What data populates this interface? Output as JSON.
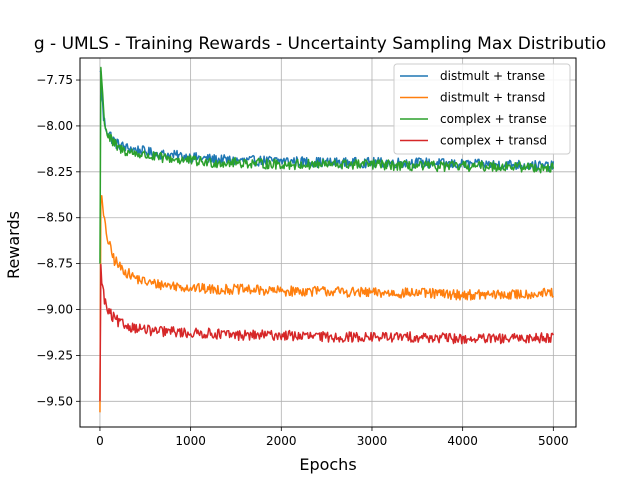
{
  "chart_data": {
    "type": "line",
    "title": "g - UMLS - Training Rewards - Uncertainty Sampling Max Distributio",
    "xlabel": "Epochs",
    "ylabel": "Rewards",
    "xlim": [
      -220,
      5250
    ],
    "ylim": [
      -9.64,
      -7.63
    ],
    "xticks": [
      0,
      1000,
      2000,
      3000,
      4000,
      5000
    ],
    "yticks": [
      -9.5,
      -9.25,
      -9.0,
      -8.75,
      -8.5,
      -8.25,
      -8.0,
      -7.75
    ],
    "ytick_labels": [
      "−9.50",
      "−9.25",
      "−9.00",
      "−8.75",
      "−8.50",
      "−8.25",
      "−8.00",
      "−7.75"
    ],
    "grid": true,
    "legend_position": "top-right",
    "series": [
      {
        "name": "distmult + transe",
        "color": "#1f77b4",
        "x": [
          0,
          10,
          20,
          40,
          60,
          80,
          100,
          150,
          200,
          300,
          400,
          500,
          600,
          800,
          1000,
          1200,
          1500,
          2000,
          2500,
          3000,
          3500,
          4000,
          4500,
          5000
        ],
        "y": [
          -7.7,
          -7.72,
          -7.82,
          -7.96,
          -8.0,
          -8.02,
          -8.04,
          -8.08,
          -8.1,
          -8.12,
          -8.13,
          -8.14,
          -8.15,
          -8.16,
          -8.17,
          -8.18,
          -8.19,
          -8.19,
          -8.2,
          -8.2,
          -8.2,
          -8.21,
          -8.21,
          -8.22
        ]
      },
      {
        "name": "distmult + transd",
        "color": "#ff7f0e",
        "x": [
          0,
          5,
          15,
          30,
          50,
          80,
          100,
          150,
          200,
          300,
          400,
          500,
          600,
          800,
          1000,
          1200,
          1500,
          2000,
          2500,
          3000,
          3500,
          4000,
          4500,
          5000
        ],
        "y": [
          -9.56,
          -8.34,
          -8.38,
          -8.45,
          -8.53,
          -8.6,
          -8.65,
          -8.72,
          -8.76,
          -8.8,
          -8.83,
          -8.85,
          -8.86,
          -8.87,
          -8.88,
          -8.89,
          -8.89,
          -8.9,
          -8.9,
          -8.91,
          -8.91,
          -8.92,
          -8.92,
          -8.91
        ]
      },
      {
        "name": "complex + transe",
        "color": "#2ca02c",
        "x": [
          0,
          10,
          20,
          40,
          60,
          80,
          100,
          150,
          200,
          300,
          400,
          500,
          600,
          800,
          1000,
          1200,
          1500,
          2000,
          2500,
          3000,
          3500,
          4000,
          4500,
          5000
        ],
        "y": [
          -8.75,
          -7.68,
          -7.75,
          -7.92,
          -8.0,
          -8.04,
          -8.06,
          -8.1,
          -8.12,
          -8.14,
          -8.15,
          -8.16,
          -8.17,
          -8.18,
          -8.19,
          -8.2,
          -8.2,
          -8.21,
          -8.21,
          -8.21,
          -8.22,
          -8.22,
          -8.22,
          -8.23
        ]
      },
      {
        "name": "complex + transd",
        "color": "#d62728",
        "x": [
          0,
          5,
          15,
          30,
          50,
          80,
          100,
          150,
          200,
          300,
          400,
          500,
          600,
          800,
          1000,
          1200,
          1500,
          2000,
          2500,
          3000,
          3500,
          4000,
          4500,
          5000
        ],
        "y": [
          -9.5,
          -8.76,
          -8.8,
          -8.88,
          -8.95,
          -9.0,
          -9.02,
          -9.05,
          -9.07,
          -9.09,
          -9.1,
          -9.11,
          -9.12,
          -9.12,
          -9.13,
          -9.13,
          -9.14,
          -9.14,
          -9.15,
          -9.15,
          -9.15,
          -9.16,
          -9.16,
          -9.15
        ]
      }
    ]
  }
}
